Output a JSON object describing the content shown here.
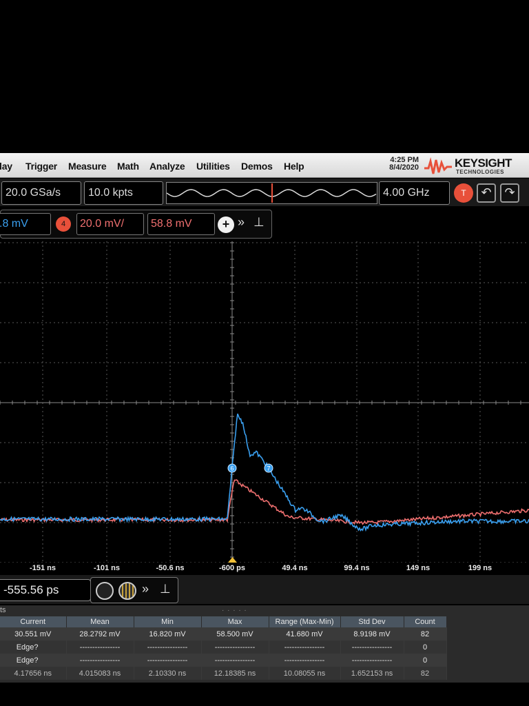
{
  "menu": [
    "lay",
    "Trigger",
    "Measure",
    "Math",
    "Analyze",
    "Utilities",
    "Demos",
    "Help"
  ],
  "clock": {
    "time": "4:25 PM",
    "date": "8/4/2020"
  },
  "brand": {
    "name": "KEYSIGHT",
    "sub": "TECHNOLOGIES"
  },
  "acquisition": {
    "sample_rate": "20.0 GSa/s",
    "memory_depth": "10.0 kpts",
    "bandwidth": "4.00 GHz",
    "trigger_badge": "T"
  },
  "channels": {
    "ch_partial_offset": ".8 mV",
    "ch4_number": "4",
    "ch4_scale": "20.0 mV/",
    "ch4_offset": "58.8 mV"
  },
  "colors": {
    "blue_trace": "#3aa0f0",
    "red_trace": "#f07070",
    "accent": "#e8503a"
  },
  "markers": [
    {
      "id": "6"
    },
    {
      "id": "7"
    }
  ],
  "time_axis": [
    "-151 ns",
    "-101 ns",
    "-50.6 ns",
    "-600 ps",
    "49.4 ns",
    "99.4 ns",
    "149 ns",
    "199 ns"
  ],
  "horizontal_position": "-555.56 ps",
  "results": {
    "title": "ts",
    "columns": [
      "Current",
      "Mean",
      "Min",
      "Max",
      "Range (Max-Min)",
      "Std Dev",
      "Count"
    ],
    "rows": [
      [
        "30.551 mV",
        "28.2792 mV",
        "16.820 mV",
        "58.500 mV",
        "41.680 mV",
        "8.9198 mV",
        "82"
      ],
      [
        "Edge?",
        "----------------",
        "----------------",
        "----------------",
        "----------------",
        "----------------",
        "0"
      ],
      [
        "Edge?",
        "----------------",
        "----------------",
        "----------------",
        "----------------",
        "----------------",
        "0"
      ],
      [
        "4.17656 ns",
        "4.015083 ns",
        "2.10330 ns",
        "12.18385 ns",
        "10.08055 ns",
        "1.652153 ns",
        "82"
      ]
    ]
  }
}
